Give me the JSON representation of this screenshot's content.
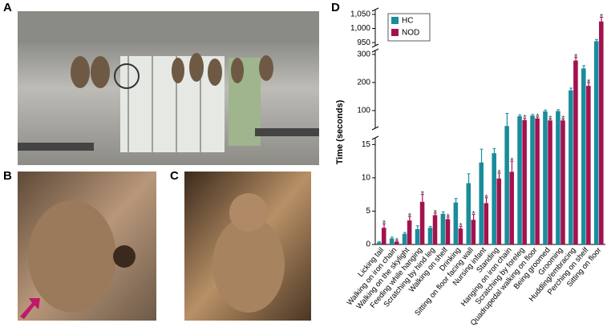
{
  "panels": [
    "A",
    "B",
    "C",
    "D"
  ],
  "chart_data": {
    "type": "bar",
    "y_label": "Time (seconds)",
    "categories": [
      "Licking tail",
      "Walking on iron chain",
      "Walking on the skylight",
      "Feeding while hanging",
      "Scratching by hind leg",
      "Walking on shelf",
      "Drinking",
      "Sitting on floor facing wall",
      "Nursing infant",
      "Standing",
      "Hanging on iron chain",
      "Scratching by foreleg",
      "Quadrupedal walking on floor",
      "Being groomed",
      "Grooming",
      "Huddling/embracing",
      "Perching on shelf",
      "Sitting on floor"
    ],
    "series": [
      {
        "name": "HC",
        "color": "#1a8c9c",
        "values": [
          0.3,
          0.9,
          1.6,
          2.3,
          2.5,
          4.6,
          6.3,
          9.2,
          12.3,
          13.7,
          45,
          80,
          82,
          97,
          98,
          172,
          250,
          955
        ],
        "errors": [
          0.1,
          0.2,
          0.2,
          0.5,
          0.2,
          0.3,
          0.6,
          1.4,
          2.0,
          0.7,
          45,
          5,
          4,
          5,
          5,
          8,
          10,
          6
        ]
      },
      {
        "name": "NOD",
        "color": "#a3124f",
        "values": [
          2.5,
          0.4,
          3.6,
          6.4,
          4.4,
          3.8,
          2.4,
          3.7,
          6.2,
          9.9,
          10.9,
          66,
          72,
          65,
          65,
          278,
          188,
          1025
        ],
        "errors": [
          0.6,
          0.1,
          0.6,
          1.1,
          0.3,
          0.3,
          0.3,
          0.8,
          0.8,
          0.8,
          1.6,
          6,
          5,
          5,
          5,
          12,
          12,
          15
        ]
      }
    ],
    "annotation": "*",
    "ysegments": [
      {
        "ylim": [
          0,
          16
        ],
        "yticks": [
          0,
          5,
          10,
          15
        ]
      },
      {
        "ylim": [
          37,
          314
        ],
        "yticks": [
          100,
          200,
          300
        ]
      },
      {
        "ylim": [
          939,
          1067
        ],
        "yticks": [
          950,
          {
            "value": 1000,
            "label": "1,000"
          },
          {
            "value": 1050,
            "label": "1,050"
          }
        ]
      }
    ],
    "legend": "upper-left"
  }
}
